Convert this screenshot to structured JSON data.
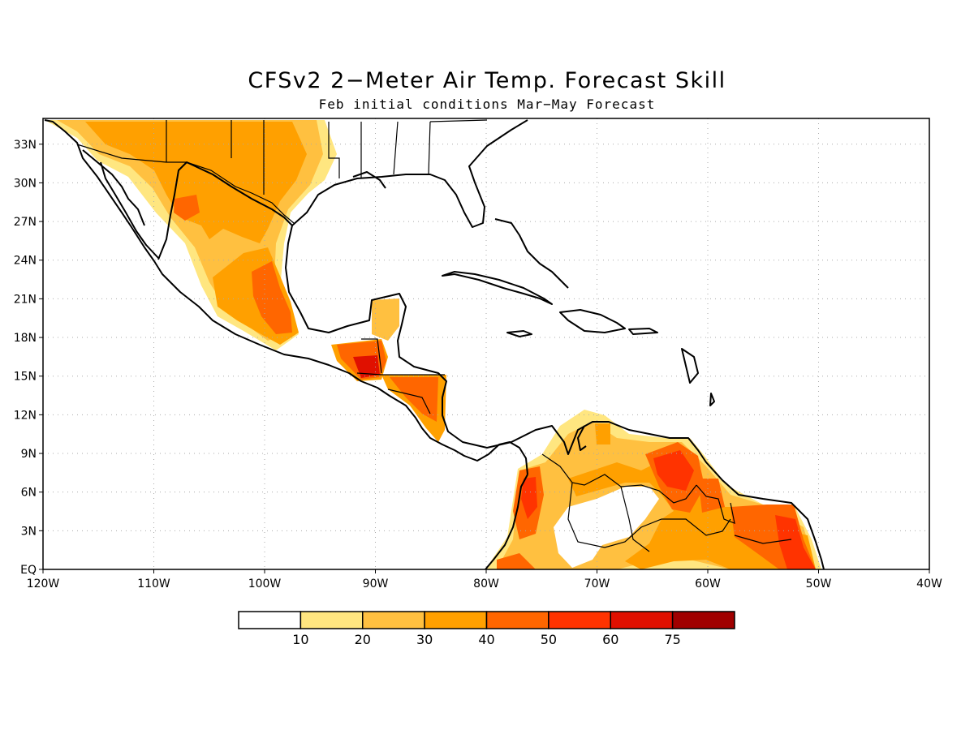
{
  "title": "CFSv2 2−Meter Air Temp. Forecast Skill",
  "subtitle": "Feb initial conditions   Mar−May Forecast",
  "map": {
    "lon_range": [
      -120,
      -40
    ],
    "lat_range": [
      0,
      35
    ],
    "lon_ticks": [
      {
        "value": -120,
        "label": "120W"
      },
      {
        "value": -110,
        "label": "110W"
      },
      {
        "value": -100,
        "label": "100W"
      },
      {
        "value": -90,
        "label": "90W"
      },
      {
        "value": -80,
        "label": "80W"
      },
      {
        "value": -70,
        "label": "70W"
      },
      {
        "value": -60,
        "label": "60W"
      },
      {
        "value": -50,
        "label": "50W"
      },
      {
        "value": -40,
        "label": "40W"
      }
    ],
    "lat_ticks": [
      {
        "value": 0,
        "label": "EQ"
      },
      {
        "value": 3,
        "label": "3N"
      },
      {
        "value": 6,
        "label": "6N"
      },
      {
        "value": 9,
        "label": "9N"
      },
      {
        "value": 12,
        "label": "12N"
      },
      {
        "value": 15,
        "label": "15N"
      },
      {
        "value": 18,
        "label": "18N"
      },
      {
        "value": 21,
        "label": "21N"
      },
      {
        "value": 24,
        "label": "24N"
      },
      {
        "value": 27,
        "label": "27N"
      },
      {
        "value": 30,
        "label": "30N"
      },
      {
        "value": 33,
        "label": "33N"
      }
    ],
    "grid": "dotted"
  },
  "legend": {
    "colors": [
      "#ffffff",
      "#ffe680",
      "#ffc040",
      "#ffa000",
      "#ff6600",
      "#ff3300",
      "#e01000",
      "#a00000"
    ],
    "labels": [
      "10",
      "20",
      "30",
      "40",
      "50",
      "60",
      "75"
    ]
  }
}
